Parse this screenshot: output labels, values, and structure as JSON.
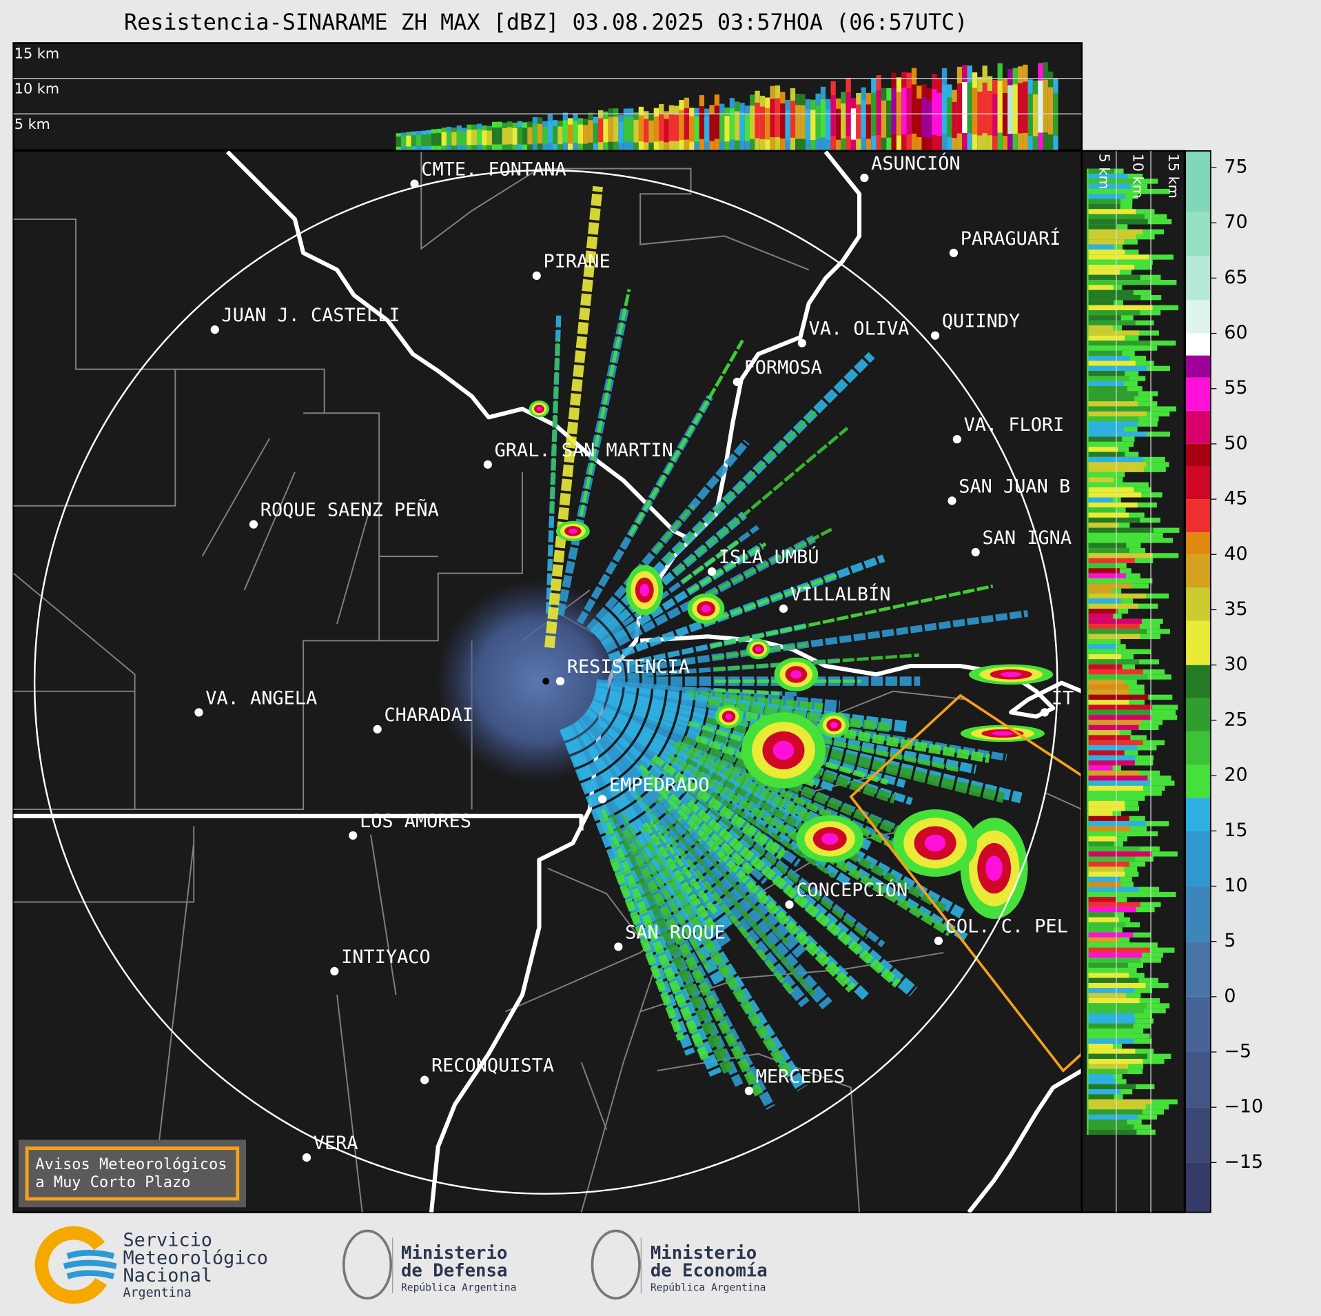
{
  "title": "Resistencia-SINARAME ZH MAX [dBZ] 03.08.2025 03:57HOA (06:57UTC)",
  "profile_heights": [
    "15 km",
    "10 km",
    "5 km"
  ],
  "side_heights": [
    "5 km",
    "10 km",
    "15 km"
  ],
  "cities": [
    "CMTE. FONTANA",
    "PIRANE",
    "JUAN J. CASTELLI",
    "ASUNCIÓN",
    "PARAGUARÍ",
    "VA. OLIVA",
    "QUIINDY",
    "FORMOSA",
    "VA. FLORI",
    "GRAL. SAN MARTIN",
    "SAN JUAN B",
    "ROQUE SAENZ PEÑA",
    "SAN IGNA",
    "ISLA UMBÚ",
    "VILLALBÍN",
    "RESISTENCIA",
    "VA. ANGELA",
    "CHARADAI",
    "IT",
    "EMPEDRADO",
    "LOS AMORES",
    "CONCEPCIÓN",
    "COL. C. PEL",
    "SAN ROQUE",
    "INTIYACO",
    "RECONQUISTA",
    "MERCEDES",
    "VERA"
  ],
  "colorbar": {
    "lim": [
      -19.5,
      76.5
    ],
    "ticks": [
      {
        "value": -15,
        "label": "−15"
      },
      {
        "value": -10,
        "label": "−10"
      },
      {
        "value": -5,
        "label": "−5"
      },
      0,
      5,
      10,
      15,
      20,
      25,
      30,
      35,
      40,
      45,
      50,
      55,
      60,
      65,
      70,
      75
    ],
    "bands": [
      {
        "from": -19.5,
        "color": "#363a66"
      },
      {
        "from": -15,
        "color": "#3c4775"
      },
      {
        "from": -10,
        "color": "#435585"
      },
      {
        "from": -5,
        "color": "#486496"
      },
      {
        "from": 0,
        "color": "#4874a8"
      },
      {
        "from": 5,
        "color": "#3c86bb"
      },
      {
        "from": 10,
        "color": "#2e98cf"
      },
      {
        "from": 15,
        "color": "#2fb0e2"
      },
      {
        "from": 18,
        "color": "#46e03a"
      },
      {
        "from": 21,
        "color": "#3cc236"
      },
      {
        "from": 24,
        "color": "#2f9e2e"
      },
      {
        "from": 27,
        "color": "#257a25"
      },
      {
        "from": 30,
        "color": "#eaea38"
      },
      {
        "from": 34,
        "color": "#cccc30"
      },
      {
        "from": 37,
        "color": "#d4a220"
      },
      {
        "from": 40,
        "color": "#e08a10"
      },
      {
        "from": 42,
        "color": "#f03030"
      },
      {
        "from": 45,
        "color": "#d00828"
      },
      {
        "from": 48,
        "color": "#a80010"
      },
      {
        "from": 50,
        "color": "#d8006a"
      },
      {
        "from": 53,
        "color": "#ff10d8"
      },
      {
        "from": 56,
        "color": "#a0009a"
      },
      {
        "from": 58,
        "color": "#ffffff"
      },
      {
        "from": 60,
        "color": "#dff5ec"
      },
      {
        "from": 63,
        "color": "#b6ead6"
      },
      {
        "from": 67,
        "color": "#96e0c4"
      },
      {
        "from": 71,
        "color": "#80d8b8"
      }
    ]
  },
  "warning_box": [
    "Avisos Meteorológicos",
    "a Muy Corto Plazo"
  ],
  "logos": [
    {
      "lines": [
        "Servicio",
        "Meteorológico",
        "Nacional"
      ],
      "subtitle": "Argentina"
    },
    {
      "lines": [
        "Ministerio",
        "de Defensa"
      ],
      "subtitle": "República Argentina"
    },
    {
      "lines": [
        "Ministerio",
        "de Economía"
      ],
      "subtitle": "República Argentina"
    }
  ]
}
